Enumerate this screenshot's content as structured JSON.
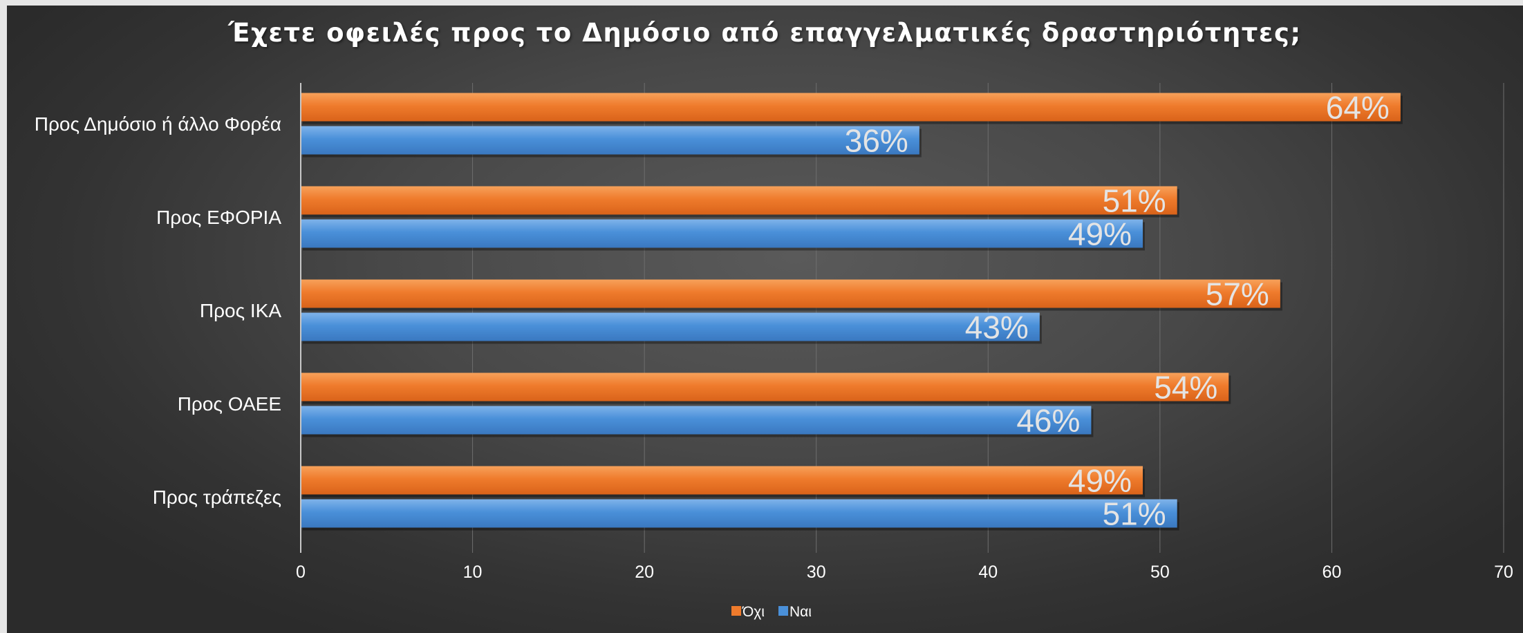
{
  "chart_data": {
    "type": "bar",
    "orientation": "horizontal",
    "title": "Έχετε οφειλές προς το Δημόσιο από επαγγελματικές δραστηριότητες;",
    "categories": [
      "Προς Δημόσιο ή άλλο Φορέα",
      "Προς ΕΦΟΡΙΑ",
      "Προς ΙΚΑ",
      "Προς ΟΑΕΕ",
      "Προς τράπεζες"
    ],
    "series": [
      {
        "name": "Όχι",
        "color": "#ef7b2c",
        "values": [
          64,
          51,
          57,
          54,
          49
        ],
        "labels": [
          "64%",
          "51%",
          "57%",
          "54%",
          "49%"
        ]
      },
      {
        "name": "Ναι",
        "color": "#4a90d9",
        "values": [
          36,
          49,
          43,
          46,
          51
        ],
        "labels": [
          "36%",
          "49%",
          "43%",
          "46%",
          "51%"
        ]
      }
    ],
    "xlim": [
      0,
      70
    ],
    "xticks": [
      0,
      10,
      20,
      30,
      40,
      50,
      60,
      70
    ],
    "xtick_labels": [
      "0",
      "10",
      "20",
      "30",
      "40",
      "50",
      "60",
      "70"
    ],
    "grid": true,
    "legend_position": "bottom"
  }
}
